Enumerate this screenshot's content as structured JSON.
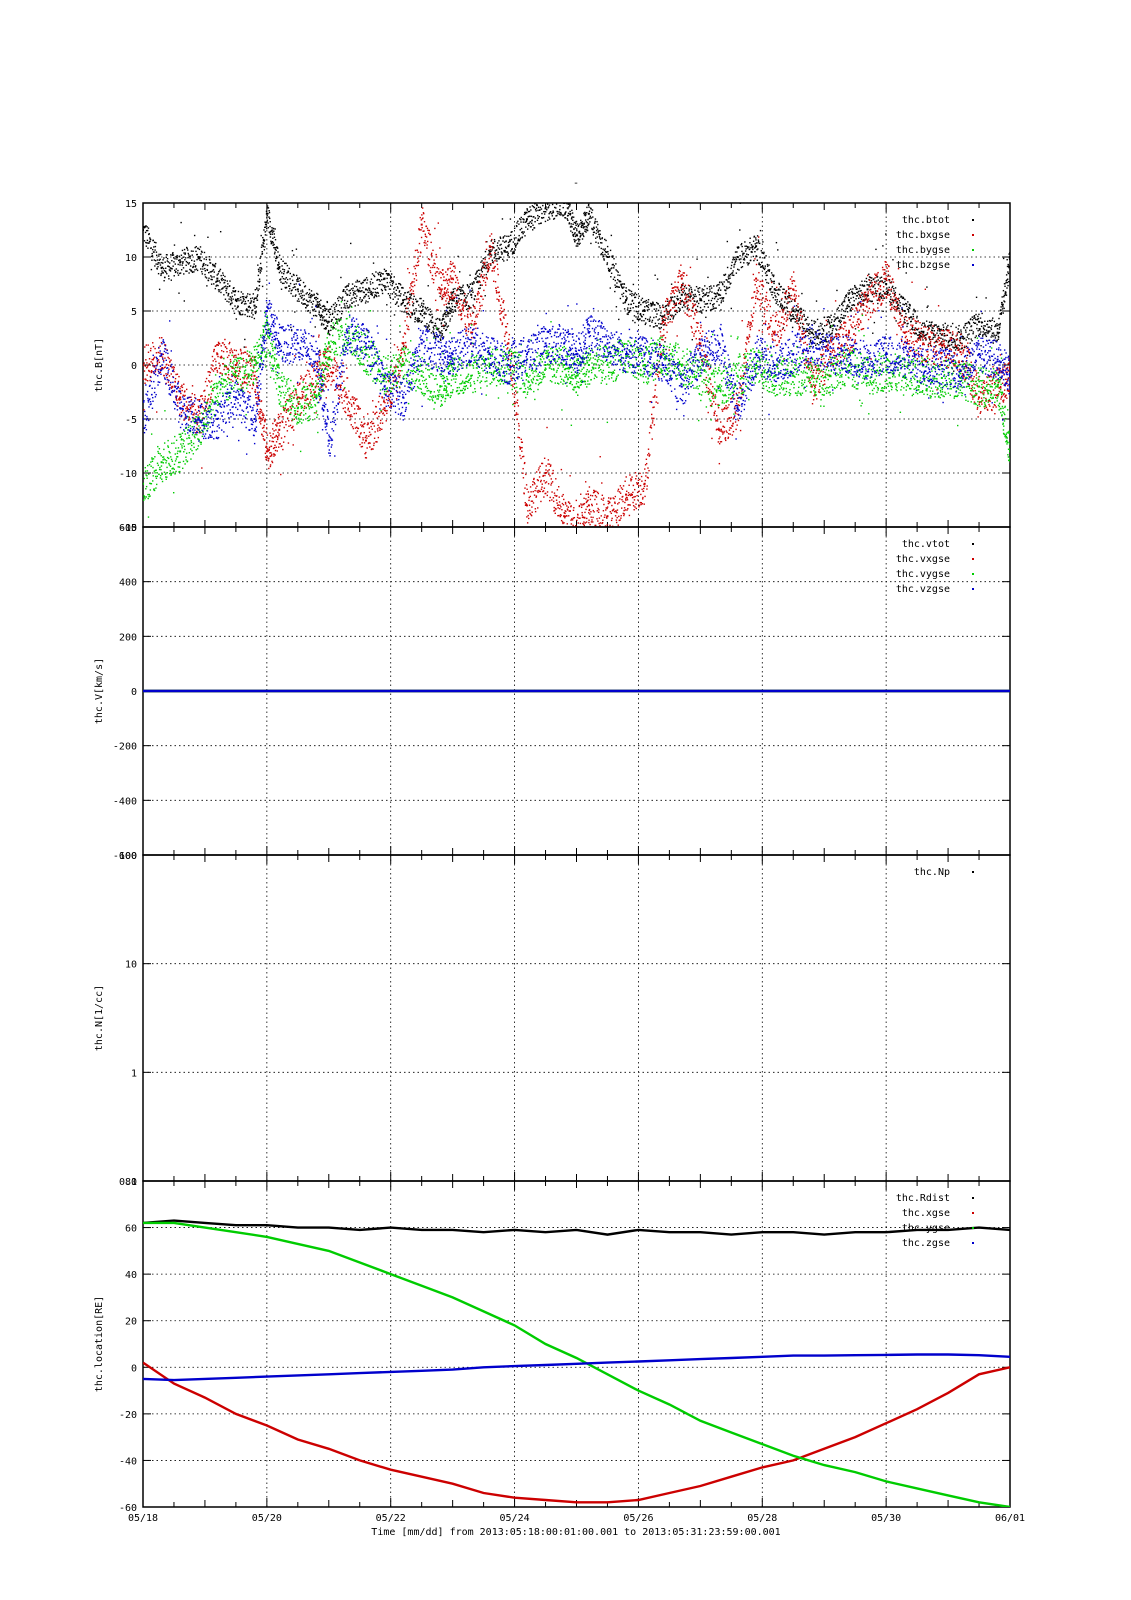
{
  "figure": {
    "title": "-",
    "time_label": "Time [mm/dd]  from 2013:05:18:00:01:00.001  to  2013:05:31:23:59:00.001",
    "x_ticks": [
      "05/18",
      "05/20",
      "05/22",
      "05/24",
      "05/26",
      "05/28",
      "05/30",
      "06/01"
    ]
  },
  "colors": {
    "black": "#000000",
    "red": "#cc0000",
    "green": "#00cc00",
    "blue": "#0000cc"
  },
  "chart_data": [
    {
      "type": "scatter",
      "ylabel": "thc.B[nT]",
      "x_unit": "days since 05/18",
      "xlim": [
        0,
        14
      ],
      "ylim": [
        -15,
        15
      ],
      "yticks": [
        -15,
        -10,
        -5,
        0,
        5,
        10,
        15
      ],
      "grid": true,
      "legend_position": "top-right",
      "series": [
        {
          "name": "thc.btot",
          "color": "black",
          "x": [
            0.0,
            0.3,
            0.6,
            0.9,
            1.2,
            1.5,
            1.8,
            2.0,
            2.2,
            2.5,
            2.8,
            3.0,
            3.3,
            3.6,
            3.9,
            4.2,
            4.5,
            4.8,
            5.0,
            5.3,
            5.6,
            5.9,
            6.2,
            6.5,
            6.8,
            7.0,
            7.2,
            7.5,
            7.8,
            8.1,
            8.4,
            8.7,
            9.0,
            9.3,
            9.6,
            9.9,
            10.2,
            10.5,
            10.8,
            11.1,
            11.4,
            11.7,
            12.0,
            12.3,
            12.6,
            12.9,
            13.2,
            13.5,
            13.8,
            14.0
          ],
          "values": [
            12.5,
            9,
            9.5,
            10,
            8,
            6,
            5.5,
            14,
            9,
            7,
            5.5,
            4,
            6.5,
            7,
            8,
            6,
            5,
            3,
            6,
            6.5,
            10.5,
            11,
            13.5,
            14.5,
            15,
            12,
            14,
            10,
            6,
            5,
            4.5,
            6.5,
            6,
            6.5,
            10,
            11,
            7,
            5,
            3,
            3.5,
            6,
            7,
            7.5,
            5,
            3,
            2.8,
            2.5,
            4,
            3,
            10
          ]
        },
        {
          "name": "thc.bxgse",
          "color": "red",
          "x": [
            0.0,
            0.3,
            0.6,
            0.9,
            1.2,
            1.5,
            1.8,
            2.0,
            2.2,
            2.5,
            2.8,
            3.0,
            3.3,
            3.6,
            3.9,
            4.2,
            4.5,
            4.8,
            5.0,
            5.3,
            5.6,
            5.9,
            6.2,
            6.5,
            6.8,
            7.0,
            7.2,
            7.5,
            7.8,
            8.1,
            8.4,
            8.7,
            9.0,
            9.3,
            9.6,
            9.9,
            10.2,
            10.5,
            10.8,
            11.1,
            11.4,
            11.7,
            12.0,
            12.3,
            12.6,
            12.9,
            13.2,
            13.5,
            13.8,
            14.0
          ],
          "values": [
            0,
            1,
            -3,
            -5,
            1,
            0,
            -1,
            -8,
            -6,
            -3,
            -1,
            0,
            -3,
            -7,
            -4,
            2,
            13,
            7,
            8,
            3,
            11,
            2,
            -13,
            -10,
            -14,
            -15,
            -13,
            -14,
            -12,
            -11,
            4,
            8,
            2,
            -6,
            -4,
            8,
            3,
            7,
            -2,
            1,
            3,
            6,
            8,
            3,
            2,
            1.8,
            1.2,
            -3,
            -2,
            -1
          ]
        },
        {
          "name": "thc.bygse",
          "color": "green",
          "x": [
            0.0,
            0.3,
            0.6,
            0.9,
            1.2,
            1.5,
            1.8,
            2.0,
            2.2,
            2.5,
            2.8,
            3.0,
            3.3,
            3.6,
            3.9,
            4.2,
            4.5,
            4.8,
            5.0,
            5.3,
            5.6,
            5.9,
            6.2,
            6.5,
            6.8,
            7.0,
            7.2,
            7.5,
            7.8,
            8.1,
            8.4,
            8.7,
            9.0,
            9.3,
            9.6,
            9.9,
            10.2,
            10.5,
            10.8,
            11.1,
            11.4,
            11.7,
            12.0,
            12.3,
            12.6,
            12.9,
            13.2,
            13.5,
            13.8,
            14.0
          ],
          "values": [
            -11,
            -9,
            -8,
            -6,
            -2,
            -1,
            0,
            3,
            -2,
            -4,
            -3,
            2,
            3,
            1,
            -1,
            0,
            -1,
            -2,
            -1,
            -1,
            0,
            0,
            -1,
            0,
            0,
            -1,
            0,
            0,
            1,
            0,
            1,
            0,
            -1,
            -2,
            -1,
            0,
            -1,
            -1,
            -1,
            -1,
            0,
            -1,
            -0.5,
            -1,
            -1,
            -1.2,
            -1.2,
            -2,
            -2,
            -8
          ]
        },
        {
          "name": "thc.bzgse",
          "color": "blue",
          "x": [
            0.0,
            0.3,
            0.6,
            0.9,
            1.2,
            1.5,
            1.8,
            2.0,
            2.2,
            2.5,
            2.8,
            3.0,
            3.3,
            3.6,
            3.9,
            4.2,
            4.5,
            4.8,
            5.0,
            5.3,
            5.6,
            5.9,
            6.2,
            6.5,
            6.8,
            7.0,
            7.2,
            7.5,
            7.8,
            8.1,
            8.4,
            8.7,
            9.0,
            9.3,
            9.6,
            9.9,
            10.2,
            10.5,
            10.8,
            11.1,
            11.4,
            11.7,
            12.0,
            12.3,
            12.6,
            12.9,
            13.2,
            13.5,
            13.8,
            14.0
          ],
          "values": [
            -5,
            1,
            -4,
            -5,
            -5,
            -3,
            -5,
            5,
            2,
            2,
            1,
            -7,
            3,
            2,
            -2,
            -3,
            2,
            1,
            1,
            2,
            1,
            0,
            1,
            2,
            2,
            1,
            3,
            2,
            1,
            1,
            0,
            -2,
            1,
            2,
            -4,
            1,
            0,
            1,
            2,
            1,
            1,
            0.5,
            1,
            0.5,
            0,
            0,
            -0.5,
            1,
            0.5,
            -1
          ]
        }
      ]
    },
    {
      "type": "line",
      "ylabel": "thc.V[km/s]",
      "x_unit": "days since 05/18",
      "xlim": [
        0,
        14
      ],
      "ylim": [
        -600,
        600
      ],
      "yticks": [
        -600,
        -400,
        -200,
        0,
        200,
        400,
        600
      ],
      "grid": true,
      "legend_position": "top-right",
      "series": [
        {
          "name": "thc.vtot",
          "color": "black",
          "x": [
            0,
            14
          ],
          "values": [
            0,
            0
          ]
        },
        {
          "name": "thc.vxgse",
          "color": "red",
          "x": [
            0,
            14
          ],
          "values": [
            0,
            0
          ]
        },
        {
          "name": "thc.vygse",
          "color": "green",
          "x": [
            0,
            14
          ],
          "values": [
            0,
            0
          ]
        },
        {
          "name": "thc.vzgse",
          "color": "blue",
          "x": [
            0,
            14
          ],
          "values": [
            0,
            0
          ]
        }
      ]
    },
    {
      "type": "line",
      "ylabel": "thc.N[1/cc]",
      "log_scale": true,
      "xlim": [
        0,
        14
      ],
      "ylim": [
        0.1,
        100
      ],
      "yticks": [
        0.1,
        1,
        10,
        100
      ],
      "ytick_labels": [
        "0.1",
        "1",
        "10",
        "100"
      ],
      "grid": true,
      "legend_position": "top-right",
      "series": [
        {
          "name": "thc.Np",
          "color": "black",
          "x": [],
          "values": []
        }
      ]
    },
    {
      "type": "line",
      "ylabel": "thc.location[RE]",
      "x_unit": "days since 05/18",
      "xlim": [
        0,
        14
      ],
      "ylim": [
        -60,
        80
      ],
      "yticks": [
        -60,
        -40,
        -20,
        0,
        20,
        40,
        60,
        80
      ],
      "grid": true,
      "legend_position": "top-right",
      "series": [
        {
          "name": "thc.Rdist",
          "color": "black",
          "x": [
            0,
            0.5,
            1,
            1.5,
            2,
            2.5,
            3,
            3.5,
            4,
            4.5,
            5,
            5.5,
            6,
            6.5,
            7,
            7.5,
            8,
            8.5,
            9,
            9.5,
            10,
            10.5,
            11,
            11.5,
            12,
            12.5,
            13,
            13.5,
            14
          ],
          "values": [
            62,
            63,
            62,
            61,
            61,
            60,
            60,
            59,
            60,
            59,
            59,
            58,
            59,
            58,
            59,
            57,
            59,
            58,
            58,
            57,
            58,
            58,
            57,
            58,
            58,
            59,
            59,
            60,
            59
          ]
        },
        {
          "name": "thc.xgse",
          "color": "red",
          "x": [
            0,
            0.5,
            1,
            1.5,
            2,
            2.5,
            3,
            3.5,
            4,
            4.5,
            5,
            5.5,
            6,
            6.5,
            7,
            7.5,
            8,
            8.5,
            9,
            9.5,
            10,
            10.5,
            11,
            11.5,
            12,
            12.5,
            13,
            13.5,
            14
          ],
          "values": [
            2,
            -7,
            -13,
            -20,
            -25,
            -31,
            -35,
            -40,
            -44,
            -47,
            -50,
            -54,
            -56,
            -57,
            -58,
            -58,
            -57,
            -54,
            -51,
            -47,
            -43,
            -40,
            -35,
            -30,
            -24,
            -18,
            -11,
            -3,
            0
          ]
        },
        {
          "name": "thc.ygse",
          "color": "green",
          "x": [
            0,
            0.5,
            1,
            1.5,
            2,
            2.5,
            3,
            3.5,
            4,
            4.5,
            5,
            5.5,
            6,
            6.5,
            7,
            7.5,
            8,
            8.5,
            9,
            9.5,
            10,
            10.5,
            11,
            11.5,
            12,
            12.5,
            13,
            13.5,
            14
          ],
          "values": [
            62,
            62,
            60,
            58,
            56,
            53,
            50,
            45,
            40,
            35,
            30,
            24,
            18,
            10,
            4,
            -3,
            -10,
            -16,
            -23,
            -28,
            -33,
            -38,
            -42,
            -45,
            -49,
            -52,
            -55,
            -58,
            -60
          ]
        },
        {
          "name": "thc.zgse",
          "color": "blue",
          "x": [
            0,
            0.5,
            1,
            1.5,
            2,
            2.5,
            3,
            3.5,
            4,
            4.5,
            5,
            5.5,
            6,
            6.5,
            7,
            7.5,
            8,
            8.5,
            9,
            9.5,
            10,
            10.5,
            11,
            11.5,
            12,
            12.5,
            13,
            13.5,
            14
          ],
          "values": [
            -5,
            -5.5,
            -5,
            -4.5,
            -4,
            -3.5,
            -3,
            -2.5,
            -2,
            -1.5,
            -1,
            0,
            0.5,
            1,
            1.5,
            2,
            2.5,
            3,
            3.5,
            4,
            4.5,
            5,
            5,
            5.2,
            5.3,
            5.5,
            5.5,
            5.2,
            4.5
          ]
        }
      ]
    }
  ]
}
